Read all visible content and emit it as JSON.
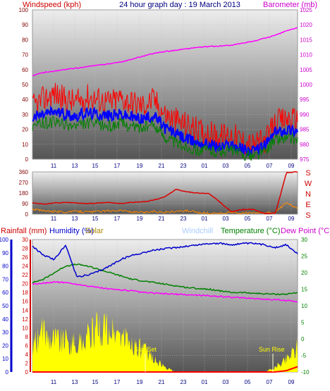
{
  "header": {
    "windspeed_label": "Windspeed (kph)",
    "title": "24 hour graph day : 19 March 2013",
    "barometer_label": "Barometer (mb)"
  },
  "legend_bottom": {
    "rainfall": "Rainfall (mm)",
    "humidity": "Humidity (%)",
    "solar": "Solar",
    "windchill": "Windchill",
    "temperature": "Temperature (°C)",
    "dewpoint": "Dew Point (°C)"
  },
  "annotations": {
    "sunset": "Sun Set",
    "sunrise": "Sun Rise"
  },
  "colors": {
    "windspeed": "#ff0000",
    "windavg": "#0000ff",
    "windlull": "#008000",
    "barometer": "#ff00ff",
    "direction": "#dd0000",
    "direction_gust": "#ff8800",
    "humidity": "#0000cc",
    "temperature": "#008000",
    "dewpoint": "#ff00ff",
    "rain": "#ff0000",
    "solar": "#ffff00",
    "windchill": "#aaccff",
    "title": "#000080",
    "label": "#800000"
  },
  "chart_data": [
    {
      "type": "line",
      "name": "wind-and-barometer",
      "title": "24 hour graph day : 19 March 2013",
      "x_ticks": [
        "11",
        "13",
        "15",
        "17",
        "19",
        "21",
        "23",
        "01",
        "03",
        "05",
        "07",
        "09"
      ],
      "x": [
        0,
        1,
        2,
        3,
        4,
        5,
        6,
        7,
        8,
        9,
        10,
        11,
        12,
        13,
        14,
        15,
        16,
        17,
        18,
        19,
        20,
        21,
        22,
        23,
        24
      ],
      "y_left_label": "Windspeed (kph)",
      "y_left_ticks": [
        0,
        10,
        20,
        30,
        40,
        50,
        60,
        70,
        80,
        90,
        100
      ],
      "y_left_lim": [
        0,
        100
      ],
      "y_right_label": "Barometer (mb)",
      "y_right_ticks": [
        975,
        980,
        985,
        990,
        995,
        1000,
        1005,
        1010,
        1015,
        1020,
        1025
      ],
      "y_right_lim": [
        975,
        1025
      ],
      "series": [
        {
          "name": "gust",
          "values": [
            35,
            40,
            44,
            40,
            38,
            42,
            40,
            38,
            41,
            38,
            36,
            40,
            30,
            26,
            23,
            19,
            17,
            15,
            17,
            12,
            9,
            12,
            24,
            27,
            26
          ],
          "noise": 9
        },
        {
          "name": "average",
          "values": [
            28,
            30,
            32,
            30,
            29,
            31,
            30,
            29,
            30,
            28,
            27,
            29,
            21,
            17,
            13,
            11,
            10,
            8,
            10,
            7,
            5,
            9,
            18,
            20,
            19
          ],
          "noise": 4
        },
        {
          "name": "lull",
          "values": [
            22,
            24,
            25,
            23,
            22,
            24,
            23,
            22,
            24,
            22,
            21,
            23,
            15,
            11,
            8,
            6,
            6,
            5,
            6,
            3,
            2,
            5,
            13,
            14,
            13
          ],
          "noise": 4
        },
        {
          "name": "barometer",
          "values": [
            1003,
            1004,
            1004.5,
            1005,
            1005.5,
            1006,
            1006.5,
            1007,
            1007.5,
            1008.5,
            1009.5,
            1010.5,
            1011,
            1011.5,
            1012,
            1012.5,
            1012.7,
            1012.9,
            1013.2,
            1013.8,
            1014.5,
            1015.5,
            1016.5,
            1018,
            1019
          ]
        }
      ]
    },
    {
      "type": "line",
      "name": "wind-direction",
      "x_ticks": [
        "11",
        "13",
        "15",
        "17",
        "19",
        "21",
        "23",
        "01",
        "03",
        "05",
        "07",
        "09"
      ],
      "y_left_ticks": [
        0,
        90,
        180,
        270,
        360
      ],
      "y_left_lim": [
        0,
        360
      ],
      "y_right_ticks": [
        "S",
        "E",
        "N",
        "W",
        "S"
      ],
      "series": [
        {
          "name": "direction",
          "values": [
            95,
            85,
            95,
            100,
            95,
            90,
            95,
            100,
            90,
            100,
            105,
            120,
            150,
            210,
            190,
            180,
            175,
            100,
            20,
            40,
            40,
            5,
            10,
            355,
            360
          ]
        },
        {
          "name": "gust-direction",
          "values": [
            40,
            25,
            20,
            15,
            20,
            15,
            20,
            25,
            30,
            15,
            10,
            20,
            15,
            20,
            25,
            10,
            5,
            5,
            10,
            5,
            5,
            5,
            10,
            100,
            40
          ]
        }
      ]
    },
    {
      "type": "line",
      "name": "temperature-humidity-rain",
      "x_ticks": [
        "11",
        "13",
        "15",
        "17",
        "19",
        "21",
        "23",
        "01",
        "03",
        "05",
        "07",
        "09"
      ],
      "y_left_ticks": [
        0,
        10,
        20,
        30,
        40,
        50,
        60,
        70,
        80,
        90,
        100
      ],
      "y_left_lim": [
        0,
        100
      ],
      "y_rain_ticks": [
        0,
        2,
        4,
        6,
        8,
        10,
        12,
        14,
        16,
        18,
        20,
        22,
        24,
        26,
        28,
        30
      ],
      "y_rain_lim": [
        0,
        30
      ],
      "y_right_ticks": [
        -10,
        -5,
        0,
        5,
        10,
        15,
        20,
        25,
        30
      ],
      "y_right_lim": [
        -10,
        30
      ],
      "series": [
        {
          "name": "humidity",
          "values": [
            95,
            88,
            85,
            96,
            72,
            73,
            76,
            80,
            85,
            88,
            90,
            92,
            93,
            94,
            95,
            96,
            97,
            97,
            96,
            97,
            97,
            96,
            94,
            96,
            89
          ]
        },
        {
          "name": "temperature",
          "values": [
            17,
            18,
            20,
            22,
            22.5,
            22,
            21,
            20,
            19,
            18,
            17.5,
            17,
            16.5,
            16,
            15.5,
            15.2,
            15,
            14.5,
            14,
            14,
            13.8,
            13.6,
            13.5,
            13.5,
            14
          ]
        },
        {
          "name": "dewpoint",
          "values": [
            16.5,
            16.8,
            17.2,
            17,
            16.5,
            16,
            15.5,
            15,
            14.8,
            14.5,
            14,
            13.8,
            13.6,
            13.5,
            13.3,
            13.2,
            13,
            12.8,
            12.6,
            12.4,
            12.2,
            12,
            11.8,
            11.6,
            11.3
          ]
        },
        {
          "name": "solar",
          "values": [
            6,
            9,
            8,
            7,
            6,
            8,
            10,
            9,
            8,
            6,
            5,
            3,
            1,
            0,
            0,
            0,
            0,
            0,
            0,
            0,
            0,
            0,
            1,
            3,
            6
          ]
        },
        {
          "name": "rain",
          "values": [
            0,
            0,
            0,
            0,
            0,
            0,
            0,
            0,
            0,
            0,
            0,
            0,
            0,
            0,
            0,
            0,
            0,
            0,
            0,
            0,
            0,
            0,
            0,
            0.3,
            1.2
          ]
        }
      ]
    }
  ]
}
